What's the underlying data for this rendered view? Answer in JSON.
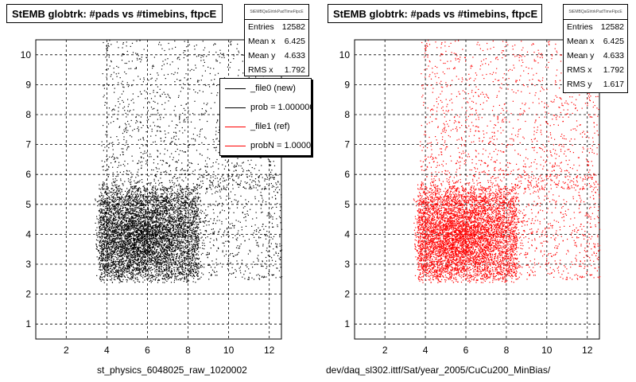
{
  "colors": {
    "reference": "#000000",
    "new": "#ff0000",
    "grid": "#000000"
  },
  "footer_text": "",
  "panels": [
    {
      "title": "StEMB globtrk: #pads vs #timebins, ftpcE",
      "x_axis_title": "st_physics_6048025_raw_1020002",
      "marker_color": "#000000",
      "stats": {
        "name": "StEMBQaGlrtrkPadTimeFtpcE",
        "rows": [
          {
            "label": "Entries",
            "value": "12582"
          },
          {
            "label": "Mean x",
            "value": "6.425"
          },
          {
            "label": "Mean y",
            "value": "4.633"
          },
          {
            "label": "RMS x",
            "value": "1.792"
          }
        ]
      },
      "legend": [
        {
          "text": "_file0 (new)",
          "color": "#000000"
        },
        {
          "text": "prob = 1.000000",
          "color": "#000000"
        },
        {
          "text": "_file1 (ref)",
          "color": "#ff0000"
        },
        {
          "text": "probN = 1.000000",
          "color": "#ff0000"
        }
      ]
    },
    {
      "title": "StEMB globtrk: #pads vs #timebins, ftpcE",
      "x_axis_title": "dev/daq_sl302.ittf/Sat/year_2005/CuCu200_MinBias/",
      "marker_color": "#ff0000",
      "stats": {
        "name": "StEMBQaGlrtrkPadTimeFtpcE",
        "rows": [
          {
            "label": "Entries",
            "value": "12582"
          },
          {
            "label": "Mean x",
            "value": "6.425"
          },
          {
            "label": "Mean y",
            "value": "4.633"
          },
          {
            "label": "RMS x",
            "value": "1.792"
          },
          {
            "label": "RMS y",
            "value": "1.617"
          }
        ]
      }
    }
  ],
  "chart_data": [
    {
      "type": "scatter",
      "title": "StEMB globtrk: #pads vs #timebins, ftpcE",
      "xlabel": "st_physics_6048025_raw_1020002",
      "ylabel": "",
      "xlim": [
        0.5,
        12.6
      ],
      "ylim": [
        0.5,
        10.5
      ],
      "xticks": [
        2,
        4,
        6,
        8,
        10,
        12
      ],
      "yticks": [
        1,
        2,
        3,
        4,
        5,
        6,
        7,
        8,
        9,
        10
      ],
      "grid": true,
      "series": [
        {
          "name": "_file0 (new)",
          "color": "#000000",
          "entries": 12582,
          "mean_x": 6.425,
          "mean_y": 4.633,
          "rms_x": 1.792,
          "rms_y": 1.617
        }
      ],
      "legend_placement": "top-right"
    },
    {
      "type": "scatter",
      "title": "StEMB globtrk: #pads vs #timebins, ftpcE",
      "xlabel": "dev/daq_sl302.ittf/Sat/year_2005/CuCu200_MinBias/",
      "ylabel": "",
      "xlim": [
        0.5,
        12.6
      ],
      "ylim": [
        0.5,
        10.5
      ],
      "xticks": [
        2,
        4,
        6,
        8,
        10,
        12
      ],
      "yticks": [
        1,
        2,
        3,
        4,
        5,
        6,
        7,
        8,
        9,
        10
      ],
      "grid": true,
      "series": [
        {
          "name": "_file1 (ref)",
          "color": "#ff0000",
          "entries": 12582,
          "mean_x": 6.425,
          "mean_y": 4.633,
          "rms_x": 1.792,
          "rms_y": 1.617
        }
      ]
    }
  ]
}
